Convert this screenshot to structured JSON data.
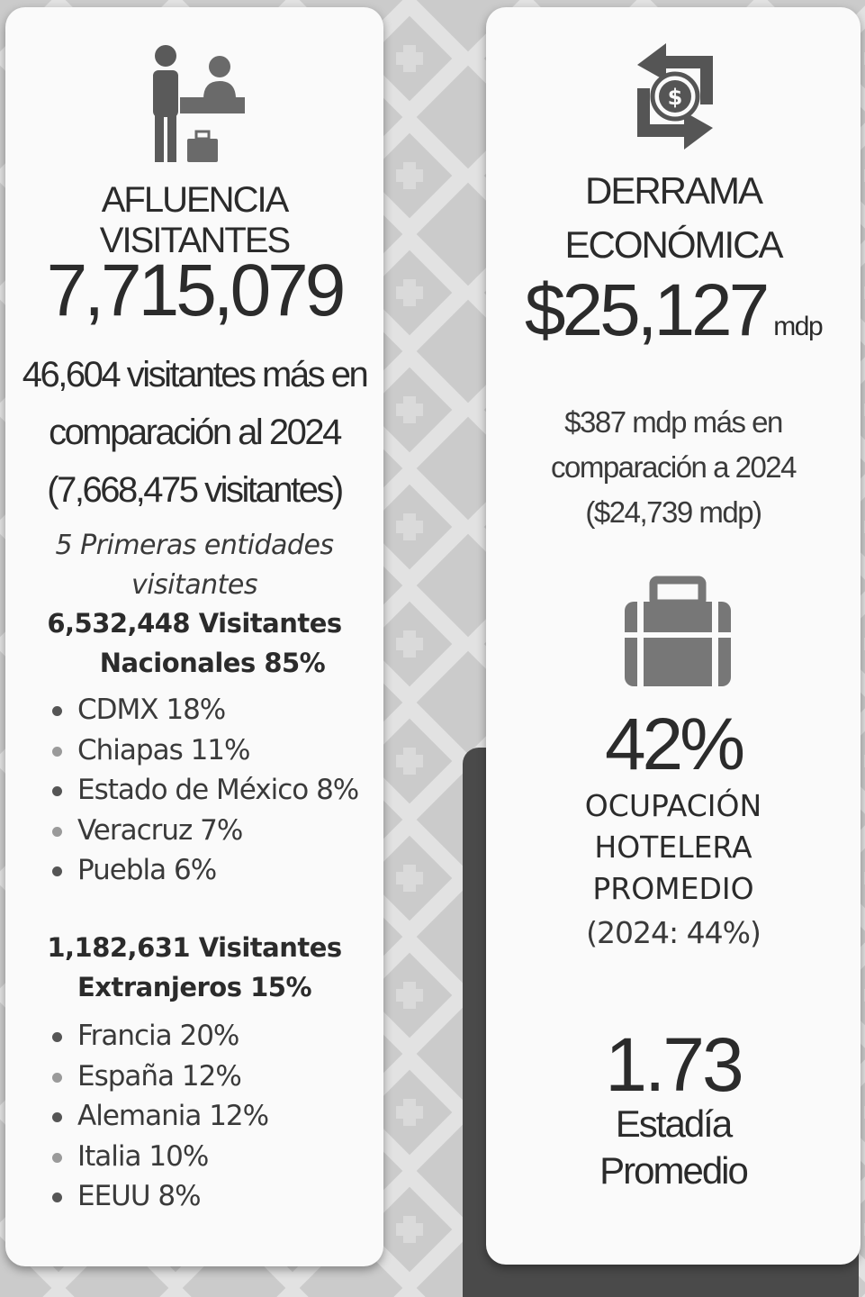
{
  "visitors_card": {
    "title": "AFLUENCIA VISITANTES",
    "total": "7,715,079",
    "comparison_lines": [
      "46,604 visitantes más en",
      "comparación al 2024",
      "(7,668,475 visitantes)"
    ],
    "top_entities_lines": [
      "5 Primeras entidades",
      "visitantes"
    ],
    "national": {
      "heading_lines": [
        "6,532,448 Visitantes",
        "Nacionales 85%"
      ],
      "items": [
        "CDMX 18%",
        "Chiapas 11%",
        "Estado de México 8%",
        "Veracruz 7%",
        "Puebla 6%"
      ]
    },
    "foreign": {
      "heading_lines": [
        "1,182,631 Visitantes",
        "Extranjeros 15%"
      ],
      "items": [
        "Francia 20%",
        "España 12%",
        "Alemania 12%",
        "Italia 10%",
        "EEUU 8%"
      ]
    }
  },
  "economy_card": {
    "title_lines": [
      "DERRAMA",
      "ECONÓMICA"
    ],
    "amount": "$25,127",
    "amount_unit": "mdp",
    "comparison_lines": [
      "$387 mdp más en",
      "comparación a 2024",
      "($24,739 mdp)"
    ],
    "occupancy": {
      "value": "42%",
      "label_lines": [
        "OCUPACIÓN",
        "HOTELERA",
        "PROMEDIO"
      ],
      "previous": "(2024: 44%)"
    },
    "stay": {
      "value": "1.73",
      "label_lines": [
        "Estadía",
        "Promedio"
      ]
    }
  },
  "icons": [
    "reception-desk-icon",
    "money-exchange-icon",
    "suitcase-icon"
  ],
  "colors": {
    "background": "#c9c9c9",
    "card": "#fafafa",
    "text": "#2b2b2b",
    "dark_block": "#4a4a4a"
  }
}
